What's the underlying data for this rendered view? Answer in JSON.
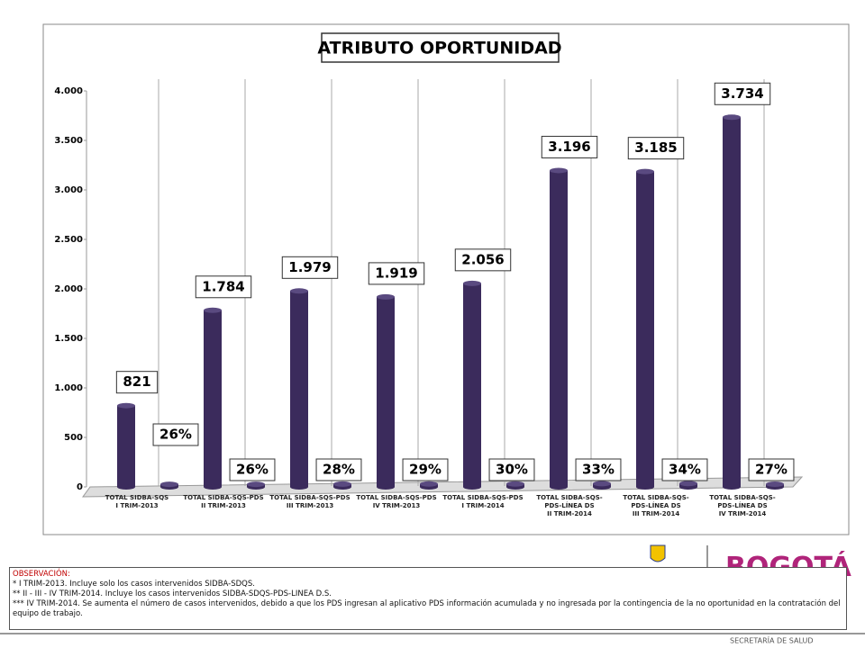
{
  "chart_data": {
    "type": "bar",
    "title": "ATRIBUTO OPORTUNIDAD",
    "categories": [
      "TOTAL SIDBA-SQS\nI TRIM-2013",
      "TOTAL SIDBA-SQS-PDS\nII TRIM-2013",
      "TOTAL SIDBA-SQS-PDS\nIII TRIM-2013",
      "TOTAL SIDBA-SQS-PDS\nIV TRIM-2013",
      "TOTAL SIDBA-SQS-PDS\nI TRIM-2014",
      "TOTAL SIDBA-SQS-\nPDS-LÍNEA DS\nII TRIM-2014",
      "TOTAL SIDBA-SQS-\nPDS-LÍNEA DS\nIII TRIM-2014",
      "TOTAL SIDBA-SQS-\nPDS-LÍNEA DS\nIV TRIM-2014"
    ],
    "series": [
      {
        "color": "#3b2b5c",
        "values": [
          821,
          1784,
          1979,
          1919,
          2056,
          3196,
          3185,
          3734
        ],
        "value_labels": [
          "821",
          "1.784",
          "1.979",
          "1.919",
          "2.056",
          "3.196",
          "3.185",
          "3.734"
        ]
      },
      {
        "color": "#3b2b5c",
        "values": [
          26,
          26,
          28,
          29,
          30,
          33,
          34,
          27
        ],
        "value_labels": [
          "26%",
          "26%",
          "28%",
          "29%",
          "30%",
          "33%",
          "34%",
          "27%"
        ]
      }
    ],
    "ylim": [
      0,
      4000
    ],
    "yticks": [
      0,
      500,
      {
        "value": 1000,
        "label": "1.000"
      },
      {
        "value": 1500,
        "label": "1.500"
      },
      {
        "value": 2000,
        "label": "2.000"
      },
      {
        "value": 2500,
        "label": "2.500"
      },
      {
        "value": 3000,
        "label": "3.000"
      },
      {
        "value": 3500,
        "label": "3.500"
      },
      {
        "value": 4000,
        "label": "4.000"
      }
    ]
  },
  "notes": {
    "heading": "OBSERVACIÓN:",
    "lines": [
      "* I TRIM-2013. Incluye solo los casos intervenidos SIDBA-SDQS.",
      "** II - III - IV TRIM-2014. Incluye los casos intervenidos SIDBA-SDQS-PDS-LINEA D.S.",
      "*** IV TRIM-2014. Se aumenta el número de casos intervenidos, debido a que los PDS ingresan al aplicativo PDS información acumulada y no ingresada por la contingencia de la no oportunidad en la contratación del equipo de trabajo."
    ]
  },
  "footer": {
    "logo": "BOGOTÁ",
    "department": "SECRETARÍA DE SALUD"
  }
}
